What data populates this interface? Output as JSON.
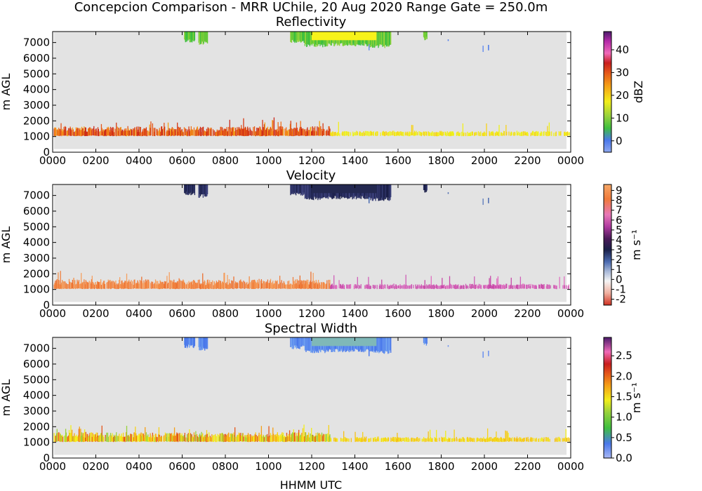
{
  "figure": {
    "title": "Concepcion Comparison - MRR UChile, 20 Aug 2020 Range Gate = 250.0m",
    "xlabel": "HHMM UTC"
  },
  "chart_data": [
    {
      "type": "heatmap",
      "title": "Reflectivity",
      "ylabel": "m AGL",
      "xlim": [
        0,
        1440
      ],
      "ylim": [
        0,
        7700
      ],
      "x_ticks": [
        "0000",
        "0200",
        "0400",
        "0600",
        "0800",
        "1000",
        "1200",
        "1400",
        "1600",
        "1800",
        "2000",
        "2200",
        "0000"
      ],
      "y_ticks": [
        0,
        1000,
        2000,
        3000,
        4000,
        5000,
        6000,
        7000
      ],
      "colorbar": {
        "label": "dBZ",
        "range": [
          -5,
          48
        ],
        "ticks": [
          "0",
          "10",
          "20",
          "30",
          "40"
        ],
        "tick_values": [
          0,
          10,
          20,
          30,
          40
        ]
      },
      "background_color": "#e3e3e3"
    },
    {
      "type": "heatmap",
      "title": "Velocity",
      "ylabel": "m AGL",
      "xlim": [
        0,
        1440
      ],
      "ylim": [
        0,
        7700
      ],
      "x_ticks": [
        "0000",
        "0200",
        "0400",
        "0600",
        "0800",
        "1000",
        "1200",
        "1400",
        "1600",
        "1800",
        "2000",
        "2200",
        "0000"
      ],
      "y_ticks": [
        0,
        1000,
        2000,
        3000,
        4000,
        5000,
        6000,
        7000
      ],
      "colorbar": {
        "label": "m s⁻¹",
        "range": [
          -2.6,
          9.6
        ],
        "ticks": [
          "-2",
          "-1",
          "0",
          "1",
          "2",
          "3",
          "4",
          "5",
          "6",
          "7",
          "8",
          "9"
        ],
        "tick_values": [
          -2,
          -1,
          0,
          1,
          2,
          3,
          4,
          5,
          6,
          7,
          8,
          9
        ]
      },
      "background_color": "#e3e3e3"
    },
    {
      "type": "heatmap",
      "title": "Spectral Width",
      "ylabel": "m AGL",
      "xlim": [
        0,
        1440
      ],
      "ylim": [
        0,
        7700
      ],
      "x_ticks": [
        "0000",
        "0200",
        "0400",
        "0600",
        "0800",
        "1000",
        "1200",
        "1400",
        "1600",
        "1800",
        "2000",
        "2200",
        "0000"
      ],
      "y_ticks": [
        0,
        1000,
        2000,
        3000,
        4000,
        5000,
        6000,
        7000
      ],
      "colorbar": {
        "label": "m s⁻¹",
        "range": [
          0,
          2.95
        ],
        "ticks": [
          "0.0",
          "0.5",
          "1.0",
          "1.5",
          "2.0",
          "2.5"
        ],
        "tick_values": [
          0,
          0.5,
          1.0,
          1.5,
          2.0,
          2.5
        ]
      },
      "background_color": "#e3e3e3"
    }
  ]
}
